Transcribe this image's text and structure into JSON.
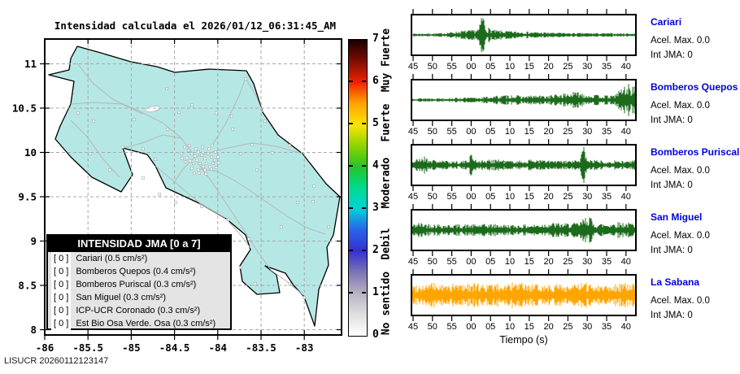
{
  "title": "Intensidad calculada el 2026/01/12_06:31:45_AM",
  "footer": "LISUCR 20260112123147",
  "map": {
    "x_ticks": [
      "-86",
      "-85.5",
      "-85",
      "-84.5",
      "-84",
      "-83.5",
      "-83"
    ],
    "y_ticks": [
      "11",
      "10.5",
      "10",
      "9.5",
      "9",
      "8.5",
      "8"
    ],
    "land_color": "#b5e8e4",
    "legend": {
      "title": "INTENSIDAD JMA [0 a 7]",
      "entries": [
        {
          "value": "[ 0 ]",
          "label": "Cariari (0.5 cm/s²)"
        },
        {
          "value": "[ 0 ]",
          "label": "Bomberos Quepos (0.4 cm/s²)"
        },
        {
          "value": "[ 0 ]",
          "label": "Bomberos Puriscal (0.3 cm/s²)"
        },
        {
          "value": "[ 0 ]",
          "label": "San Miguel (0.3 cm/s²)"
        },
        {
          "value": "[ 0 ]",
          "label": "ICP-UCR Coronado (0.3 cm/s²)"
        },
        {
          "value": "[ 0 ]",
          "label": "Est Bio Osa Verde. Osa (0.3 cm/s²)"
        }
      ]
    }
  },
  "colorbar": {
    "numbers": [
      "7",
      "6",
      "5",
      "4",
      "3",
      "2",
      "1",
      "0"
    ],
    "labels": [
      {
        "text": "Muy Fuerte",
        "y": 74
      },
      {
        "text": "Fuerte",
        "y": 151
      },
      {
        "text": "Moderado",
        "y": 225
      },
      {
        "text": "Debil",
        "y": 300
      },
      {
        "text": "No sentido",
        "y": 373
      }
    ],
    "gradient": [
      "#ffffff",
      "#e0e0e0",
      "#b9b2c1",
      "#7d74b5",
      "#3430cf",
      "#2b62e8",
      "#00d2d8",
      "#00da8f",
      "#25c425",
      "#8fd400",
      "#ffe400",
      "#ffa200",
      "#ef2200",
      "#7c0d00",
      "#190000"
    ]
  },
  "waveforms": {
    "time_ticks": [
      "45",
      "50",
      "55",
      "00",
      "05",
      "10",
      "15",
      "20",
      "25",
      "30",
      "35",
      "40"
    ],
    "xlabel": "Tiempo (s)",
    "stations": [
      {
        "name": "Cariari",
        "acel": "Acel. Max. 0.0",
        "jma": "Int JMA: 0"
      },
      {
        "name": "Bomberos Quepos",
        "acel": "Acel. Max. 0.0",
        "jma": "Int JMA: 0"
      },
      {
        "name": "Bomberos Puriscal",
        "acel": "Acel. Max. 0.0",
        "jma": "Int JMA: 0"
      },
      {
        "name": "San Miguel",
        "acel": "Acel. Max. 0.0",
        "jma": "Int JMA: 0"
      },
      {
        "name": "La Sabana",
        "acel": "Acel. Max. 0.0",
        "jma": "Int JMA: 0"
      }
    ]
  },
  "chart_data": [
    {
      "type": "map",
      "title": "Intensidad calculada el 2026/01/12_06:31:45_AM",
      "region": "Costa Rica",
      "lon_ticks": [
        -86,
        -85.5,
        -85,
        -84.5,
        -84,
        -83.5,
        -83
      ],
      "lat_ticks": [
        11,
        10.5,
        10,
        9.5,
        9,
        8.5,
        8
      ],
      "colorbar": {
        "range": [
          0,
          7
        ],
        "categories": [
          "No sentido",
          "Debil",
          "Moderado",
          "Fuerte",
          "Muy Fuerte"
        ]
      },
      "stations_intensity": [
        {
          "station": "Cariari",
          "int_jma": 0,
          "acel_cm_s2": 0.5
        },
        {
          "station": "Bomberos Quepos",
          "int_jma": 0,
          "acel_cm_s2": 0.4
        },
        {
          "station": "Bomberos Puriscal",
          "int_jma": 0,
          "acel_cm_s2": 0.3
        },
        {
          "station": "San Miguel",
          "int_jma": 0,
          "acel_cm_s2": 0.3
        },
        {
          "station": "ICP-UCR Coronado",
          "int_jma": 0,
          "acel_cm_s2": 0.3
        },
        {
          "station": "Est Bio Osa Verde. Osa",
          "int_jma": 0,
          "acel_cm_s2": 0.3
        }
      ]
    },
    {
      "type": "line",
      "title": "Cariari",
      "xlabel": "Tiempo (s)",
      "x_ticks": [
        "45",
        "50",
        "55",
        "00",
        "05",
        "10",
        "15",
        "20",
        "25",
        "30",
        "35",
        "40"
      ],
      "acel_max": 0.0,
      "int_jma": 0,
      "color": "#1c6b1c",
      "seed": 7,
      "envelope": [
        [
          0,
          1.6
        ],
        [
          0.12,
          1.8
        ],
        [
          0.17,
          3
        ],
        [
          0.22,
          4.5
        ],
        [
          0.27,
          5
        ],
        [
          0.3,
          7
        ],
        [
          0.315,
          26
        ],
        [
          0.33,
          9
        ],
        [
          0.37,
          5
        ],
        [
          0.45,
          4
        ],
        [
          0.52,
          3.5
        ],
        [
          0.6,
          2.8
        ],
        [
          0.7,
          2.2
        ],
        [
          0.85,
          2
        ],
        [
          1,
          1.8
        ]
      ]
    },
    {
      "type": "line",
      "title": "Bomberos Quepos",
      "xlabel": "Tiempo (s)",
      "x_ticks": [
        "45",
        "50",
        "55",
        "00",
        "05",
        "10",
        "15",
        "20",
        "25",
        "30",
        "35",
        "40"
      ],
      "acel_max": 0.0,
      "int_jma": 0,
      "color": "#1c6b1c",
      "seed": 13,
      "envelope": [
        [
          0,
          2
        ],
        [
          0.15,
          2.2
        ],
        [
          0.3,
          2.8
        ],
        [
          0.38,
          4.5
        ],
        [
          0.45,
          5.5
        ],
        [
          0.5,
          4
        ],
        [
          0.55,
          5
        ],
        [
          0.6,
          4.5
        ],
        [
          0.65,
          6
        ],
        [
          0.7,
          7.5
        ],
        [
          0.75,
          9
        ],
        [
          0.78,
          6
        ],
        [
          0.85,
          5
        ],
        [
          0.9,
          4.5
        ],
        [
          0.94,
          13
        ],
        [
          0.97,
          17
        ],
        [
          1,
          14
        ]
      ]
    },
    {
      "type": "line",
      "title": "Bomberos Puriscal",
      "xlabel": "Tiempo (s)",
      "x_ticks": [
        "45",
        "50",
        "55",
        "00",
        "05",
        "10",
        "15",
        "20",
        "25",
        "30",
        "35",
        "40"
      ],
      "acel_max": 0.0,
      "int_jma": 0,
      "color": "#1c6b1c",
      "seed": 21,
      "envelope": [
        [
          0,
          4.5
        ],
        [
          0.03,
          7
        ],
        [
          0.05,
          10
        ],
        [
          0.08,
          6
        ],
        [
          0.15,
          4.5
        ],
        [
          0.24,
          4.5
        ],
        [
          0.265,
          13
        ],
        [
          0.285,
          6
        ],
        [
          0.33,
          5
        ],
        [
          0.37,
          7
        ],
        [
          0.42,
          5
        ],
        [
          0.5,
          4.5
        ],
        [
          0.55,
          6.5
        ],
        [
          0.6,
          5
        ],
        [
          0.68,
          4.5
        ],
        [
          0.75,
          5.5
        ],
        [
          0.77,
          22
        ],
        [
          0.79,
          6
        ],
        [
          0.86,
          5
        ],
        [
          0.95,
          4.5
        ],
        [
          1,
          5
        ]
      ]
    },
    {
      "type": "line",
      "title": "San Miguel",
      "xlabel": "Tiempo (s)",
      "x_ticks": [
        "45",
        "50",
        "55",
        "00",
        "05",
        "10",
        "15",
        "20",
        "25",
        "30",
        "35",
        "40"
      ],
      "acel_max": 0.0,
      "int_jma": 0,
      "color": "#1c6b1c",
      "seed": 42,
      "envelope": [
        [
          0,
          6
        ],
        [
          0.03,
          8
        ],
        [
          0.08,
          7
        ],
        [
          0.15,
          6
        ],
        [
          0.25,
          6
        ],
        [
          0.35,
          6.5
        ],
        [
          0.45,
          5.5
        ],
        [
          0.55,
          6
        ],
        [
          0.62,
          8
        ],
        [
          0.68,
          7
        ],
        [
          0.75,
          8
        ],
        [
          0.795,
          18
        ],
        [
          0.81,
          7.5
        ],
        [
          0.87,
          7
        ],
        [
          0.93,
          8.5
        ],
        [
          1,
          7.5
        ]
      ]
    },
    {
      "type": "line",
      "title": "La Sabana",
      "xlabel": "Tiempo (s)",
      "x_ticks": [
        "45",
        "50",
        "55",
        "00",
        "05",
        "10",
        "15",
        "20",
        "25",
        "30",
        "35",
        "40"
      ],
      "acel_max": 0.0,
      "int_jma": 0,
      "color": "#ffa500",
      "seed": 99,
      "envelope": [
        [
          0,
          11
        ],
        [
          0.08,
          13
        ],
        [
          0.15,
          11
        ],
        [
          0.25,
          13
        ],
        [
          0.35,
          11.5
        ],
        [
          0.45,
          13
        ],
        [
          0.55,
          11
        ],
        [
          0.62,
          12.5
        ],
        [
          0.7,
          11
        ],
        [
          0.78,
          13
        ],
        [
          0.85,
          11.5
        ],
        [
          0.93,
          13
        ],
        [
          1,
          12
        ]
      ]
    }
  ]
}
